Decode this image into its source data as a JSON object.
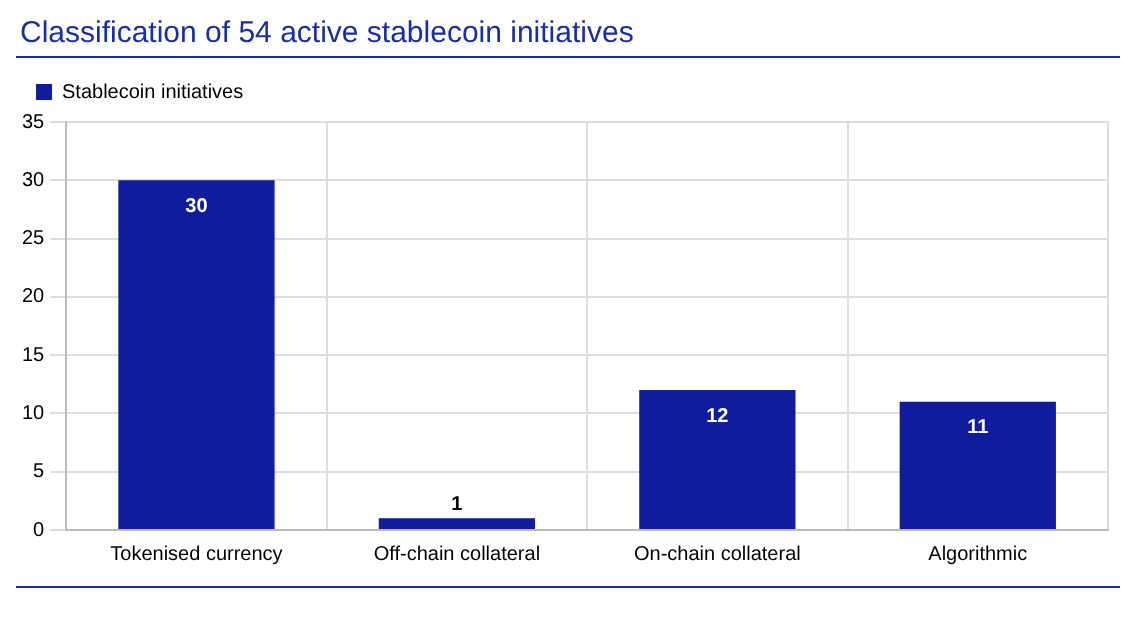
{
  "chart_data": {
    "type": "bar",
    "title": "Classification of 54 active stablecoin initiatives",
    "categories": [
      "Tokenised currency",
      "Off-chain collateral",
      "On-chain collateral",
      "Algorithmic"
    ],
    "series": [
      {
        "name": "Stablecoin initiatives",
        "color": "#101c9c",
        "values": [
          30,
          1,
          12,
          11
        ]
      }
    ],
    "ylim": [
      0,
      35
    ],
    "yticks": [
      0,
      5,
      10,
      15,
      20,
      25,
      30,
      35
    ],
    "grid": true,
    "legend": "top left",
    "data_labels": true
  }
}
